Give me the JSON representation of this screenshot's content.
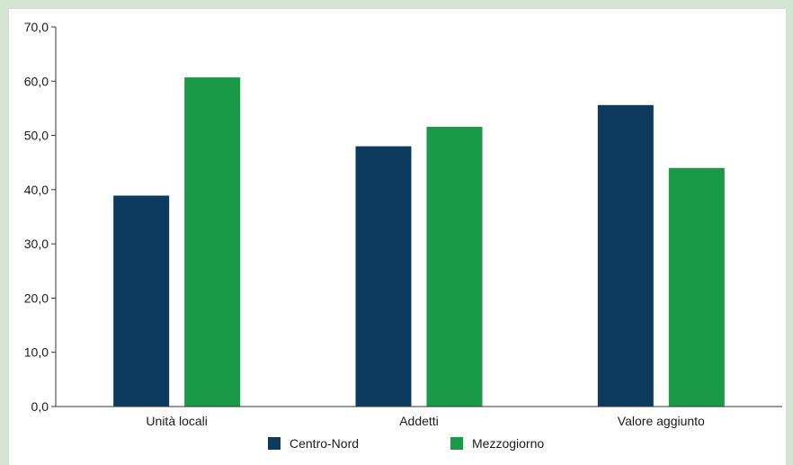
{
  "chart_data": {
    "type": "bar",
    "categories": [
      "Unità locali",
      "Addetti",
      "Valore aggiunto"
    ],
    "series": [
      {
        "name": "Centro-Nord",
        "color": "#0d3a5f",
        "values": [
          38.9,
          48.0,
          55.6
        ]
      },
      {
        "name": "Mezzogiorno",
        "color": "#1a9a46",
        "values": [
          60.7,
          51.6,
          44.0
        ]
      }
    ],
    "yticks": [
      "0,0",
      "10,0",
      "20,0",
      "30,0",
      "40,0",
      "50,0",
      "60,0",
      "70,0"
    ],
    "ylim": [
      0,
      70
    ],
    "grid": false,
    "legend_position": "bottom"
  }
}
